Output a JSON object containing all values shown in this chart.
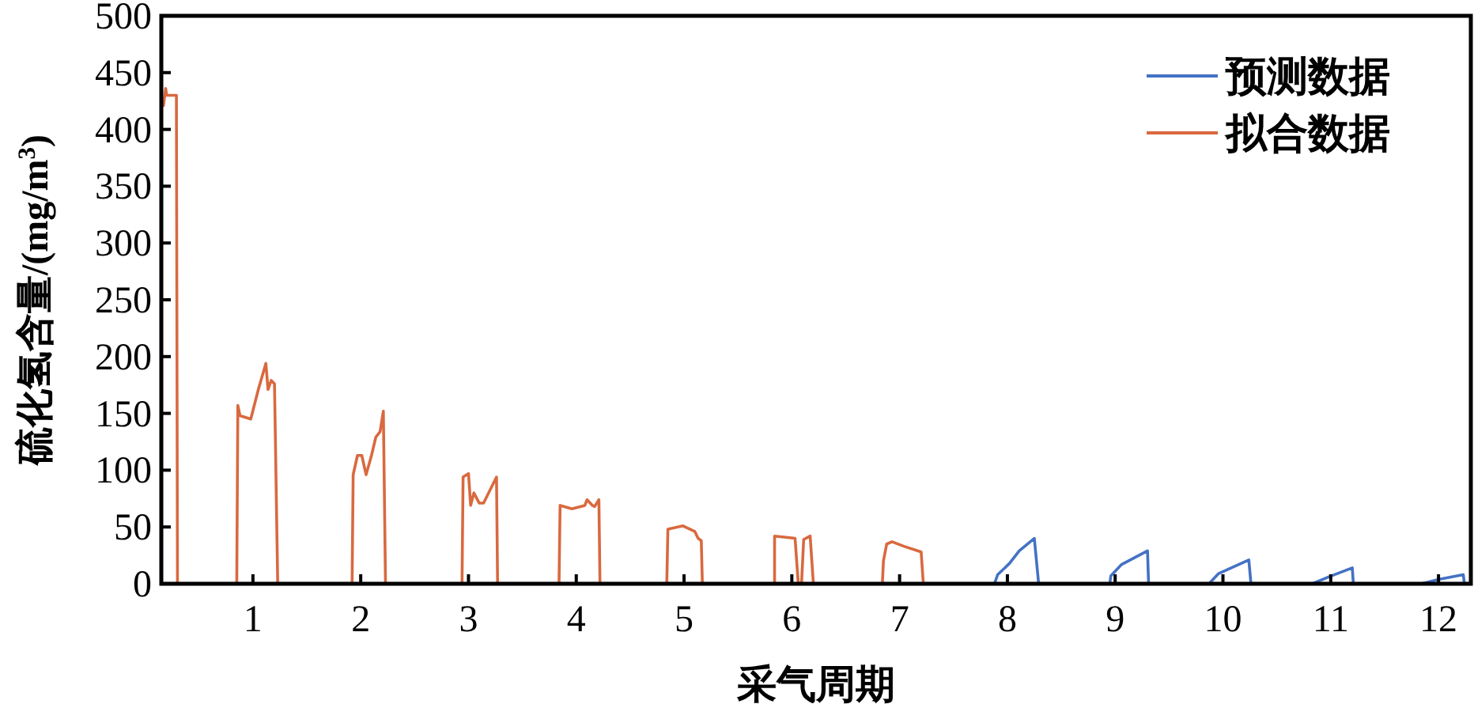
{
  "chart_data": {
    "type": "line",
    "xlabel": "采气周期",
    "ylabel": "硫化氢含量/(mg/m$^{3}$)",
    "xlim": [
      0.15,
      12.3
    ],
    "ylim": [
      0,
      500
    ],
    "xticks": [
      1,
      2,
      3,
      4,
      5,
      6,
      7,
      8,
      9,
      10,
      11,
      12
    ],
    "yticks": [
      0,
      50,
      100,
      150,
      200,
      250,
      300,
      350,
      400,
      450,
      500
    ],
    "legend": "top right",
    "series": [
      {
        "name": "预测数据",
        "color": "#4472c4",
        "x": [
          7.88,
          7.91,
          8.02,
          8.11,
          8.25,
          8.29,
          null,
          8.95,
          8.96,
          9.06,
          9.3,
          9.31,
          null,
          9.87,
          9.96,
          10.24,
          10.26,
          null,
          10.83,
          10.98,
          11.2,
          11.21,
          null,
          11.84,
          12.01,
          12.23,
          12.24
        ],
        "values": [
          0,
          8,
          18,
          29,
          40,
          0,
          null,
          0,
          7,
          17,
          29,
          0,
          null,
          0,
          9,
          21,
          0,
          null,
          0,
          6,
          14,
          0,
          null,
          0,
          4,
          8,
          0
        ]
      },
      {
        "name": "拟合数据",
        "color": "#d9693f",
        "x": [
          0.17,
          0.19,
          0.2,
          0.28,
          0.29,
          0.3,
          null,
          0.85,
          0.86,
          0.88,
          0.98,
          1.05,
          1.12,
          1.14,
          1.17,
          1.2,
          1.23,
          null,
          1.92,
          1.93,
          1.97,
          2.01,
          2.05,
          2.1,
          2.14,
          2.18,
          2.21,
          2.23,
          null,
          2.94,
          2.95,
          3.0,
          3.02,
          3.05,
          3.1,
          3.14,
          3.26,
          3.27,
          null,
          3.84,
          3.85,
          3.96,
          4.08,
          4.1,
          4.15,
          4.17,
          4.21,
          4.22,
          null,
          4.84,
          4.85,
          4.99,
          5.1,
          5.13,
          5.16,
          5.17,
          null,
          5.84,
          5.84,
          6.03,
          6.06,
          6.09,
          6.11,
          6.15,
          6.17,
          6.2,
          null,
          6.84,
          6.85,
          6.88,
          6.93,
          7.04,
          7.2,
          7.22
        ],
        "values": [
          421,
          436,
          430,
          430,
          430,
          0,
          null,
          0,
          157,
          148,
          145,
          171,
          194,
          171,
          179,
          176,
          0,
          null,
          0,
          96,
          113,
          113,
          96,
          113,
          129,
          134,
          152,
          0,
          null,
          0,
          94,
          97,
          69,
          80,
          71,
          71,
          94,
          0,
          null,
          0,
          69,
          66,
          69,
          74,
          69,
          68,
          74,
          0,
          null,
          0,
          48,
          51,
          46,
          40,
          38,
          0,
          null,
          0,
          42,
          40,
          0,
          0,
          39,
          41,
          42,
          0,
          null,
          0,
          20,
          35,
          37,
          33,
          28,
          0
        ]
      }
    ]
  }
}
